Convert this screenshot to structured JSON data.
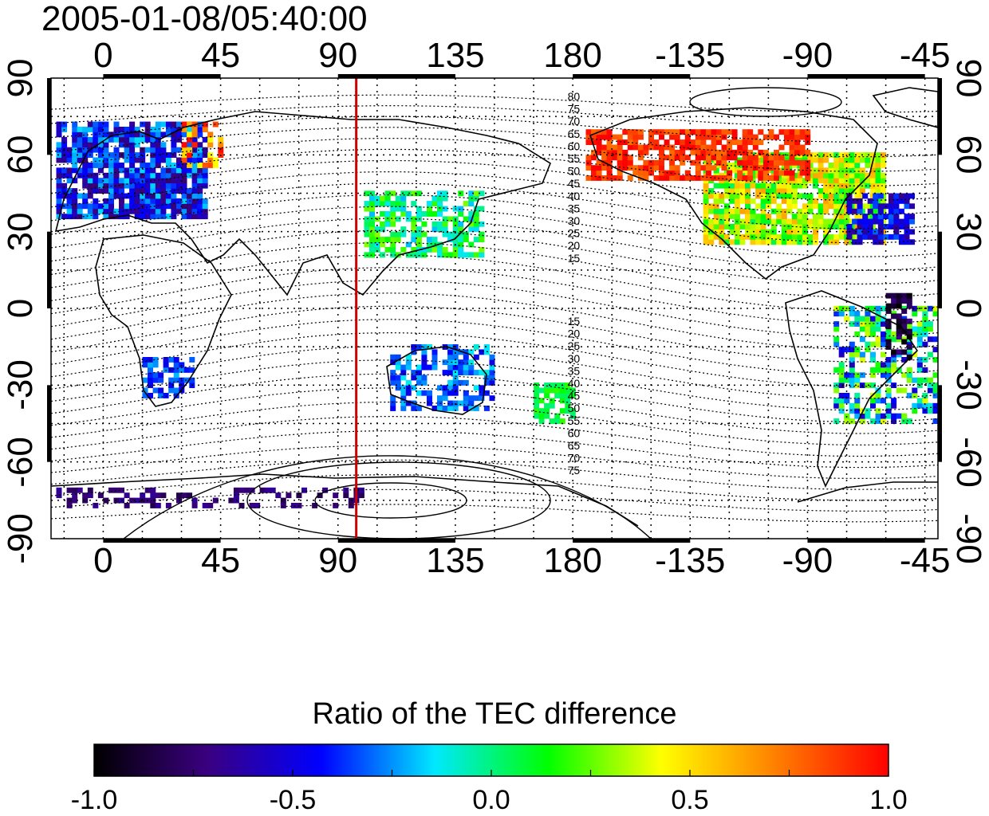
{
  "title": "2005-01-08/05:40:00",
  "map": {
    "x_ticks": [
      "0",
      "45",
      "90",
      "135",
      "180",
      "-135",
      "-90",
      "-45"
    ],
    "y_ticks": [
      "90",
      "60",
      "30",
      "0",
      "-30",
      "-60",
      "-90"
    ],
    "lon_range": [
      -20,
      320
    ],
    "lat_range": [
      -90,
      90
    ],
    "grid": "dotted, every 15 degrees",
    "terminator_longitude": 97,
    "terminator_color": "#cc0000",
    "contour_labels_north": [
      "80",
      "75",
      "70",
      "65",
      "60",
      "55",
      "50",
      "45",
      "40",
      "35",
      "30",
      "25",
      "20",
      "15"
    ],
    "contour_labels_south": [
      "15",
      "20",
      "25",
      "30",
      "35",
      "40",
      "45",
      "50",
      "55",
      "60",
      "65",
      "70",
      "75"
    ]
  },
  "colorbar": {
    "title": "Ratio of the TEC difference",
    "ticks": [
      "-1.0",
      "-0.5",
      "0.0",
      "0.5",
      "1.0"
    ],
    "range": [
      -1.0,
      1.0
    ],
    "colors": [
      "#000000",
      "#3a0080",
      "#0000ff",
      "#00e8ff",
      "#00ff00",
      "#ffff00",
      "#ff8000",
      "#ff0000"
    ]
  }
}
